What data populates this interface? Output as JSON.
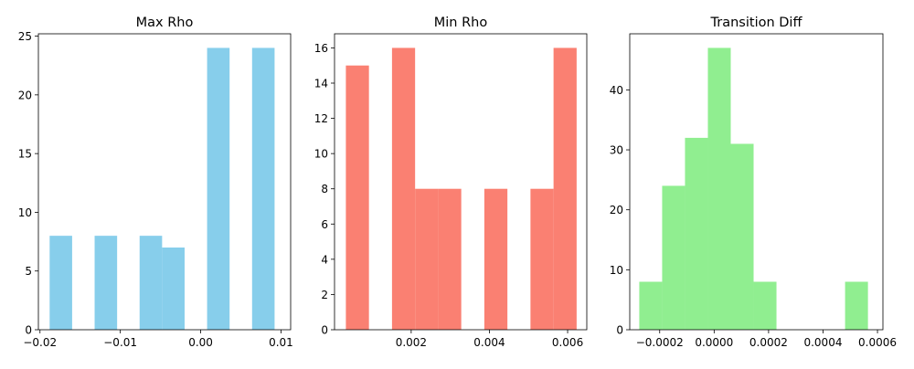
{
  "chart_data": [
    {
      "type": "bar",
      "subtype": "histogram",
      "title": "Max Rho",
      "xlabel": "",
      "ylabel": "",
      "color": "#87CEEB",
      "xlim": [
        -0.0202,
        0.0112
      ],
      "ylim": [
        0,
        25.2
      ],
      "xticks": [
        -0.02,
        -0.01,
        0.0,
        0.01
      ],
      "xtick_labels": [
        "−0.02",
        "−0.01",
        "0.00",
        "0.01"
      ],
      "yticks": [
        0,
        5,
        10,
        15,
        20,
        25
      ],
      "ytick_labels": [
        "0",
        "5",
        "10",
        "15",
        "20",
        "25"
      ],
      "grid": false,
      "bins": [
        {
          "x0": -0.0188,
          "x1": -0.016,
          "count": 8
        },
        {
          "x0": -0.016,
          "x1": -0.0132,
          "count": 0
        },
        {
          "x0": -0.0132,
          "x1": -0.0104,
          "count": 8
        },
        {
          "x0": -0.0104,
          "x1": -0.0076,
          "count": 0
        },
        {
          "x0": -0.0076,
          "x1": -0.0048,
          "count": 8
        },
        {
          "x0": -0.0048,
          "x1": -0.002,
          "count": 7
        },
        {
          "x0": -0.002,
          "x1": 0.0008,
          "count": 0
        },
        {
          "x0": 0.0008,
          "x1": 0.0036,
          "count": 24
        },
        {
          "x0": 0.0036,
          "x1": 0.0064,
          "count": 0
        },
        {
          "x0": 0.0064,
          "x1": 0.0092,
          "count": 24
        }
      ]
    },
    {
      "type": "bar",
      "subtype": "histogram",
      "title": "Min Rho",
      "xlabel": "",
      "ylabel": "",
      "color": "#FA8072",
      "xlim": [
        4e-05,
        0.00649
      ],
      "ylim": [
        0,
        16.8
      ],
      "xticks": [
        0.002,
        0.004,
        0.006
      ],
      "xtick_labels": [
        "0.002",
        "0.004",
        "0.006"
      ],
      "yticks": [
        0,
        2,
        4,
        6,
        8,
        10,
        12,
        14,
        16
      ],
      "ytick_labels": [
        "0",
        "2",
        "4",
        "6",
        "8",
        "10",
        "12",
        "14",
        "16"
      ],
      "grid": false,
      "bins": [
        {
          "x0": 0.00033,
          "x1": 0.00092,
          "count": 15
        },
        {
          "x0": 0.00092,
          "x1": 0.00151,
          "count": 0
        },
        {
          "x0": 0.00151,
          "x1": 0.0021,
          "count": 16
        },
        {
          "x0": 0.0021,
          "x1": 0.00269,
          "count": 8
        },
        {
          "x0": 0.00269,
          "x1": 0.00328,
          "count": 8
        },
        {
          "x0": 0.00328,
          "x1": 0.00387,
          "count": 0
        },
        {
          "x0": 0.00387,
          "x1": 0.00446,
          "count": 8
        },
        {
          "x0": 0.00446,
          "x1": 0.00505,
          "count": 0
        },
        {
          "x0": 0.00505,
          "x1": 0.00564,
          "count": 8
        },
        {
          "x0": 0.00564,
          "x1": 0.00623,
          "count": 16
        }
      ]
    },
    {
      "type": "bar",
      "subtype": "histogram",
      "title": "Transition Diff",
      "xlabel": "",
      "ylabel": "",
      "color": "#90EE90",
      "xlim": [
        -0.00031,
        0.00062
      ],
      "ylim": [
        0,
        49.35
      ],
      "xticks": [
        -0.0002,
        0.0,
        0.0002,
        0.0004,
        0.0006
      ],
      "xtick_labels": [
        "−0.0002",
        "0.0000",
        "0.0002",
        "0.0004",
        "0.0006"
      ],
      "yticks": [
        0,
        10,
        20,
        30,
        40
      ],
      "ytick_labels": [
        "0",
        "10",
        "20",
        "30",
        "40"
      ],
      "grid": false,
      "bins": [
        {
          "x0": -0.000275,
          "x1": -0.000191,
          "count": 8
        },
        {
          "x0": -0.000191,
          "x1": -0.000107,
          "count": 24
        },
        {
          "x0": -0.000107,
          "x1": -2.3e-05,
          "count": 32
        },
        {
          "x0": -2.3e-05,
          "x1": 6.1e-05,
          "count": 47
        },
        {
          "x0": 6.1e-05,
          "x1": 0.000145,
          "count": 31
        },
        {
          "x0": 0.000145,
          "x1": 0.000229,
          "count": 8
        },
        {
          "x0": 0.000229,
          "x1": 0.000313,
          "count": 0
        },
        {
          "x0": 0.000313,
          "x1": 0.000397,
          "count": 0
        },
        {
          "x0": 0.000397,
          "x1": 0.000481,
          "count": 0
        },
        {
          "x0": 0.000481,
          "x1": 0.000565,
          "count": 8
        }
      ]
    }
  ]
}
